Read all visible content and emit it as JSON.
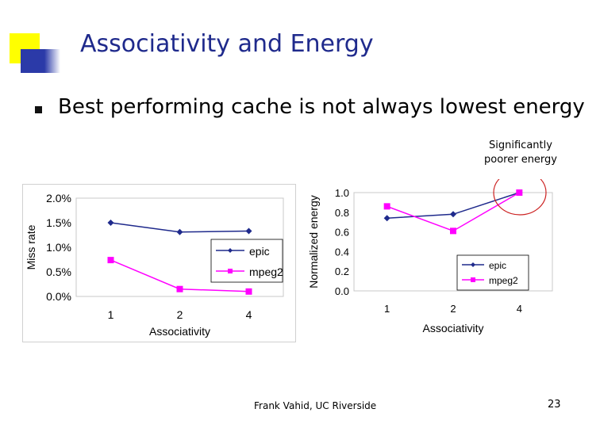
{
  "slide": {
    "title": "Associativity and Energy",
    "bullet": "Best performing cache is not always lowest energy",
    "annotation_line1": "Significantly",
    "annotation_line2": "poorer energy",
    "footer": "Frank Vahid, UC Riverside",
    "page_number": "23"
  },
  "colors": {
    "title": "#1f2a8c",
    "epic": "#1f2a8c",
    "mpeg2": "#ff00ff",
    "highlight_circle": "#cc2222",
    "logo_yellow": "#ffff00",
    "logo_blue": "#2b3aa8"
  },
  "chart_data": [
    {
      "type": "line",
      "title": "",
      "xlabel": "Associativity",
      "ylabel": "Miss rate",
      "categories": [
        "1",
        "2",
        "4"
      ],
      "y_ticks": [
        "0.0%",
        "0.5%",
        "1.0%",
        "1.5%",
        "2.0%"
      ],
      "ylim": [
        0,
        2.0
      ],
      "y_unit": "%",
      "series": [
        {
          "name": "epic",
          "values": [
            1.5,
            1.31,
            1.33
          ],
          "marker": "diamond"
        },
        {
          "name": "mpeg2",
          "values": [
            0.74,
            0.15,
            0.1
          ],
          "marker": "square"
        }
      ],
      "legend": "center-right"
    },
    {
      "type": "line",
      "title": "",
      "xlabel": "Associativity",
      "ylabel": "Normalized energy",
      "categories": [
        "1",
        "2",
        "4"
      ],
      "y_ticks": [
        "0.0",
        "0.2",
        "0.4",
        "0.6",
        "0.8",
        "1.0"
      ],
      "ylim": [
        0,
        1.0
      ],
      "series": [
        {
          "name": "epic",
          "values": [
            0.74,
            0.78,
            1.0
          ],
          "marker": "diamond"
        },
        {
          "name": "mpeg2",
          "values": [
            0.86,
            0.61,
            1.0
          ],
          "marker": "square"
        }
      ],
      "legend": "bottom-right"
    }
  ]
}
